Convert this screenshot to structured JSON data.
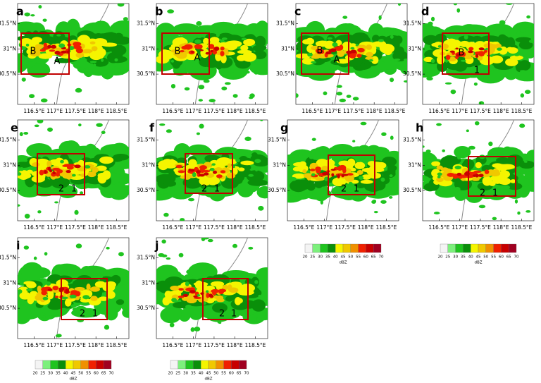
{
  "panels": [
    {
      "letter": "a",
      "labels": [
        "B",
        "A"
      ]
    },
    {
      "letter": "b",
      "labels": [
        "B",
        "A"
      ]
    },
    {
      "letter": "c",
      "labels": [
        "B",
        "A"
      ]
    },
    {
      "letter": "d",
      "labels": [
        "B",
        "1"
      ]
    },
    {
      "letter": "e",
      "labels": [
        "2",
        "1"
      ]
    },
    {
      "letter": "f",
      "labels": [
        "2",
        "1"
      ]
    },
    {
      "letter": "g",
      "labels": [
        "2",
        "1"
      ]
    },
    {
      "letter": "h",
      "labels": [
        "2",
        "1"
      ]
    },
    {
      "letter": "i",
      "labels": [
        "2",
        "1"
      ]
    },
    {
      "letter": "j",
      "labels": [
        "2",
        "1"
      ]
    }
  ],
  "axes": {
    "lonlim": [
      116.1,
      118.8
    ],
    "latlim": [
      29.9,
      31.9
    ],
    "lon": [
      {
        "value": 116.5,
        "label": "116.5°E"
      },
      {
        "value": 117,
        "label": "117°E"
      },
      {
        "value": 117.5,
        "label": "117.5°E"
      },
      {
        "value": 118,
        "label": "118°E"
      },
      {
        "value": 118.5,
        "label": "118.5°E"
      }
    ],
    "lat": [
      {
        "value": 31.5,
        "label": "31.5°N"
      },
      {
        "value": 31,
        "label": "31°N"
      },
      {
        "value": 30.5,
        "label": "30.5°N"
      }
    ]
  },
  "colorbar": {
    "ticks": [
      20,
      25,
      30,
      35,
      40,
      45,
      50,
      55,
      60,
      65,
      70
    ],
    "colors": [
      "#f4f4f4",
      "#7cf07c",
      "#1fc41f",
      "#0a8f0a",
      "#f5f500",
      "#f0c800",
      "#f09000",
      "#f02000",
      "#c80000",
      "#a00020",
      "#f000f0"
    ],
    "unit": "dBZ"
  }
}
